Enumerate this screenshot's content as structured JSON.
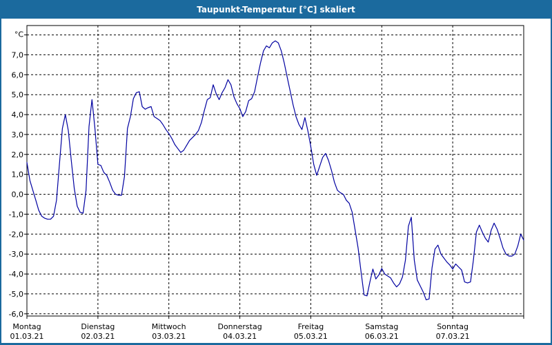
{
  "window": {
    "title": "Taupunkt-Temperatur [°C] skaliert"
  },
  "colors": {
    "titlebar_bg": "#1b6a9e",
    "titlebar_text": "#ffffff",
    "frame_border": "#1b6a9e",
    "plot_background": "#ffffff",
    "grid": "#000000",
    "axis": "#000000",
    "line": "#0000a0",
    "label_text": "#000000"
  },
  "chart_data": {
    "type": "line",
    "title": "Taupunkt-Temperatur [°C] skaliert",
    "unit_label": "°C",
    "grid": "dashed",
    "legend": "none",
    "ylim": [
      -6.11,
      8.47
    ],
    "y_axis": {
      "min": -6,
      "max": 8,
      "step": 1,
      "tick_labels": [
        "7,0",
        "6,0",
        "5,0",
        "4,0",
        "3,0",
        "2,0",
        "1,0",
        "0,0",
        "-1,0",
        "-2,0",
        "-3,0",
        "-4,0",
        "-5,0",
        "-6,0"
      ]
    },
    "x_axis": {
      "hours_per_day": 24,
      "total_hours": 168,
      "days": [
        {
          "name": "Montag",
          "date": "01.03.21"
        },
        {
          "name": "Dienstag",
          "date": "02.03.21"
        },
        {
          "name": "Mittwoch",
          "date": "03.03.21"
        },
        {
          "name": "Donnerstag",
          "date": "04.03.21"
        },
        {
          "name": "Freitag",
          "date": "05.03.21"
        },
        {
          "name": "Samstag",
          "date": "06.03.21"
        },
        {
          "name": "Sonntag",
          "date": "07.03.21"
        }
      ]
    },
    "series": [
      {
        "name": "Taupunkt-Temperatur",
        "color": "#0000a0",
        "step_hours": 1,
        "values": [
          1.6,
          0.7,
          0.2,
          -0.3,
          -0.8,
          -1.1,
          -1.2,
          -1.25,
          -1.25,
          -1.1,
          -0.3,
          1.5,
          3.3,
          4.0,
          3.2,
          1.7,
          0.3,
          -0.6,
          -0.9,
          -0.95,
          0.2,
          3.4,
          4.75,
          3.3,
          1.5,
          1.45,
          1.1,
          0.95,
          0.6,
          0.2,
          0.0,
          -0.05,
          -0.05,
          0.9,
          3.3,
          3.9,
          4.8,
          5.1,
          5.15,
          4.4,
          4.27,
          4.35,
          4.4,
          3.9,
          3.8,
          3.7,
          3.5,
          3.25,
          3.05,
          2.8,
          2.5,
          2.3,
          2.1,
          2.2,
          2.45,
          2.7,
          2.85,
          3.0,
          3.2,
          3.6,
          4.2,
          4.75,
          4.85,
          5.5,
          5.05,
          4.75,
          5.1,
          5.35,
          5.75,
          5.5,
          4.9,
          4.55,
          4.3,
          3.9,
          4.15,
          4.7,
          4.8,
          5.15,
          5.9,
          6.6,
          7.2,
          7.45,
          7.35,
          7.6,
          7.7,
          7.6,
          7.2,
          6.6,
          5.9,
          5.2,
          4.5,
          3.9,
          3.5,
          3.25,
          3.85,
          3.2,
          2.4,
          1.5,
          0.95,
          1.4,
          1.85,
          2.05,
          1.7,
          1.2,
          0.6,
          0.2,
          0.08,
          0.0,
          -0.3,
          -0.45,
          -0.9,
          -1.8,
          -2.7,
          -3.9,
          -5.05,
          -5.1,
          -4.4,
          -3.75,
          -4.25,
          -4.05,
          -3.72,
          -4.0,
          -4.1,
          -4.2,
          -4.45,
          -4.65,
          -4.5,
          -4.15,
          -3.3,
          -1.6,
          -1.15,
          -3.3,
          -4.3,
          -4.6,
          -4.9,
          -5.3,
          -5.25,
          -3.7,
          -2.75,
          -2.55,
          -3.0,
          -3.2,
          -3.4,
          -3.55,
          -3.75,
          -3.5,
          -3.65,
          -3.8,
          -4.4,
          -4.45,
          -4.4,
          -3.3,
          -1.9,
          -1.55,
          -1.9,
          -2.2,
          -2.4,
          -1.8,
          -1.45,
          -1.75,
          -2.2,
          -2.7,
          -3.0,
          -3.1,
          -3.1,
          -3.0,
          -2.6,
          -2.0,
          -2.3
        ]
      }
    ]
  }
}
